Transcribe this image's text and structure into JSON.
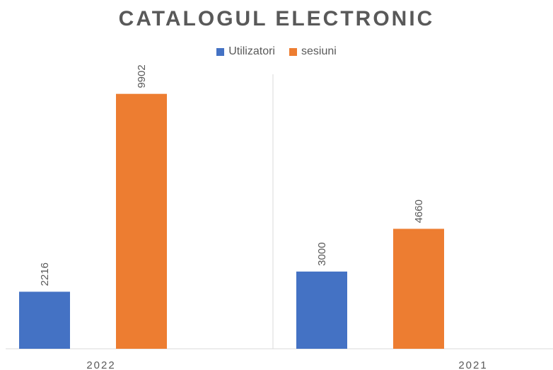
{
  "chart_data": {
    "type": "bar",
    "title": "CATALOGUL ELECTRONIC",
    "categories": [
      "2022",
      "2021"
    ],
    "series": [
      {
        "name": "Utilizatori",
        "color": "#4472C4",
        "values": [
          2216,
          3000
        ]
      },
      {
        "name": "sesiuni",
        "color": "#ED7D31",
        "values": [
          9902,
          4660
        ]
      }
    ],
    "ylim": [
      0,
      10800
    ],
    "grid": false,
    "legend_position": "top"
  }
}
